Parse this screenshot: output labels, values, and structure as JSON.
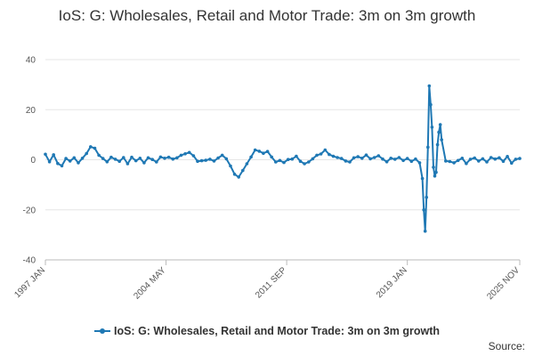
{
  "chart_data": {
    "type": "line",
    "title": "IoS: G: Wholesales, Retail and Motor Trade: 3m on 3m growth",
    "xlabel": "",
    "ylabel": "",
    "ylim": [
      -40,
      40
    ],
    "y_ticks": [
      40,
      20,
      0,
      -20,
      -40
    ],
    "x_range": [
      "1997 JAN",
      "2025 NOV"
    ],
    "x_tick_labels": [
      "1997 JAN",
      "2004 MAY",
      "2011 SEP",
      "2019 JAN",
      "2025 NOV"
    ],
    "grid": true,
    "legend_position": "bottom",
    "series": [
      {
        "name": "IoS: G: Wholesales, Retail and Motor Trade: 3m on 3m growth",
        "color": "#1f78b4",
        "points": [
          [
            "1997 JAN",
            2.2
          ],
          [
            "1997 APR",
            -0.8
          ],
          [
            "1997 JUL",
            2.0
          ],
          [
            "1997 OCT",
            -1.5
          ],
          [
            "1998 JAN",
            -2.4
          ],
          [
            "1998 APR",
            0.5
          ],
          [
            "1998 JUL",
            -0.5
          ],
          [
            "1998 OCT",
            0.8
          ],
          [
            "1999 JAN",
            -1.2
          ],
          [
            "1999 APR",
            0.6
          ],
          [
            "1999 JUL",
            2.5
          ],
          [
            "1999 OCT",
            5.2
          ],
          [
            "2000 JAN",
            4.6
          ],
          [
            "2000 APR",
            1.8
          ],
          [
            "2000 JUL",
            0.5
          ],
          [
            "2000 OCT",
            -0.8
          ],
          [
            "2001 JAN",
            1.0
          ],
          [
            "2001 APR",
            0.2
          ],
          [
            "2001 JUL",
            -0.6
          ],
          [
            "2001 OCT",
            0.9
          ],
          [
            "2002 JAN",
            -1.6
          ],
          [
            "2002 APR",
            1.0
          ],
          [
            "2002 JUL",
            -0.4
          ],
          [
            "2002 OCT",
            0.6
          ],
          [
            "2003 JAN",
            -1.2
          ],
          [
            "2003 APR",
            0.8
          ],
          [
            "2003 JUL",
            0.1
          ],
          [
            "2003 OCT",
            -0.9
          ],
          [
            "2004 JAN",
            1.1
          ],
          [
            "2004 APR",
            0.6
          ],
          [
            "2004 JUL",
            1.0
          ],
          [
            "2004 OCT",
            0.3
          ],
          [
            "2005 JAN",
            0.8
          ],
          [
            "2005 APR",
            1.8
          ],
          [
            "2005 JUL",
            2.4
          ],
          [
            "2005 OCT",
            2.9
          ],
          [
            "2006 JAN",
            1.6
          ],
          [
            "2006 APR",
            -0.6
          ],
          [
            "2006 JUL",
            -0.4
          ],
          [
            "2006 OCT",
            -0.2
          ],
          [
            "2007 JAN",
            0.2
          ],
          [
            "2007 APR",
            -0.5
          ],
          [
            "2007 JUL",
            0.7
          ],
          [
            "2007 OCT",
            1.8
          ],
          [
            "2008 JAN",
            0.4
          ],
          [
            "2008 APR",
            -2.5
          ],
          [
            "2008 JUL",
            -5.8
          ],
          [
            "2008 OCT",
            -6.9
          ],
          [
            "2009 JAN",
            -4.3
          ],
          [
            "2009 APR",
            -1.6
          ],
          [
            "2009 JUL",
            1.1
          ],
          [
            "2009 OCT",
            3.9
          ],
          [
            "2010 JAN",
            3.4
          ],
          [
            "2010 APR",
            2.6
          ],
          [
            "2010 JUL",
            3.3
          ],
          [
            "2010 OCT",
            1.1
          ],
          [
            "2011 JAN",
            -0.9
          ],
          [
            "2011 APR",
            -0.3
          ],
          [
            "2011 JUL",
            -1.1
          ],
          [
            "2011 OCT",
            0.1
          ],
          [
            "2012 JAN",
            0.3
          ],
          [
            "2012 APR",
            1.4
          ],
          [
            "2012 JUL",
            -0.6
          ],
          [
            "2012 OCT",
            -1.6
          ],
          [
            "2013 JAN",
            -0.9
          ],
          [
            "2013 APR",
            0.4
          ],
          [
            "2013 JUL",
            1.8
          ],
          [
            "2013 OCT",
            2.3
          ],
          [
            "2014 JAN",
            3.9
          ],
          [
            "2014 APR",
            2.1
          ],
          [
            "2014 JUL",
            1.4
          ],
          [
            "2014 OCT",
            0.9
          ],
          [
            "2015 JAN",
            0.5
          ],
          [
            "2015 APR",
            -0.5
          ],
          [
            "2015 JUL",
            -0.9
          ],
          [
            "2015 OCT",
            0.8
          ],
          [
            "2016 JAN",
            1.2
          ],
          [
            "2016 APR",
            0.6
          ],
          [
            "2016 JUL",
            1.9
          ],
          [
            "2016 OCT",
            0.4
          ],
          [
            "2017 JAN",
            0.9
          ],
          [
            "2017 APR",
            1.6
          ],
          [
            "2017 JUL",
            0.3
          ],
          [
            "2017 OCT",
            -0.8
          ],
          [
            "2018 JAN",
            0.6
          ],
          [
            "2018 APR",
            0.2
          ],
          [
            "2018 JUL",
            0.9
          ],
          [
            "2018 OCT",
            -0.3
          ],
          [
            "2019 JAN",
            0.5
          ],
          [
            "2019 APR",
            -0.6
          ],
          [
            "2019 JUL",
            0.3
          ],
          [
            "2019 OCT",
            -1.2
          ],
          [
            "2019 DEC",
            -7.5
          ],
          [
            "2020 JAN",
            -20.0
          ],
          [
            "2020 FEB",
            -28.5
          ],
          [
            "2020 MAR",
            -15.0
          ],
          [
            "2020 APR",
            5.0
          ],
          [
            "2020 MAY",
            29.5
          ],
          [
            "2020 JUN",
            22.0
          ],
          [
            "2020 JUL",
            13.0
          ],
          [
            "2020 AUG",
            -3.0
          ],
          [
            "2020 SEP",
            -6.5
          ],
          [
            "2020 OCT",
            -5.0
          ],
          [
            "2020 NOV",
            6.0
          ],
          [
            "2020 DEC",
            11.0
          ],
          [
            "2021 JAN",
            14.0
          ],
          [
            "2021 FEB",
            8.0
          ],
          [
            "2021 MAY",
            -0.5
          ],
          [
            "2021 AUG",
            -0.7
          ],
          [
            "2021 NOV",
            -1.2
          ],
          [
            "2022 FEB",
            -0.3
          ],
          [
            "2022 MAY",
            0.6
          ],
          [
            "2022 AUG",
            -1.5
          ],
          [
            "2022 NOV",
            0.2
          ],
          [
            "2023 FEB",
            0.7
          ],
          [
            "2023 MAY",
            -0.5
          ],
          [
            "2023 AUG",
            0.4
          ],
          [
            "2023 NOV",
            -0.9
          ],
          [
            "2024 FEB",
            0.9
          ],
          [
            "2024 MAY",
            0.3
          ],
          [
            "2024 AUG",
            0.8
          ],
          [
            "2024 NOV",
            -0.6
          ],
          [
            "2025 FEB",
            1.3
          ],
          [
            "2025 MAY",
            -1.3
          ],
          [
            "2025 AUG",
            0.2
          ],
          [
            "2025 NOV",
            0.5
          ]
        ]
      }
    ]
  },
  "legend": {
    "label": "IoS: G: Wholesales, Retail and Motor Trade: 3m on 3m growth"
  },
  "footer": {
    "source_label": "Source:"
  }
}
